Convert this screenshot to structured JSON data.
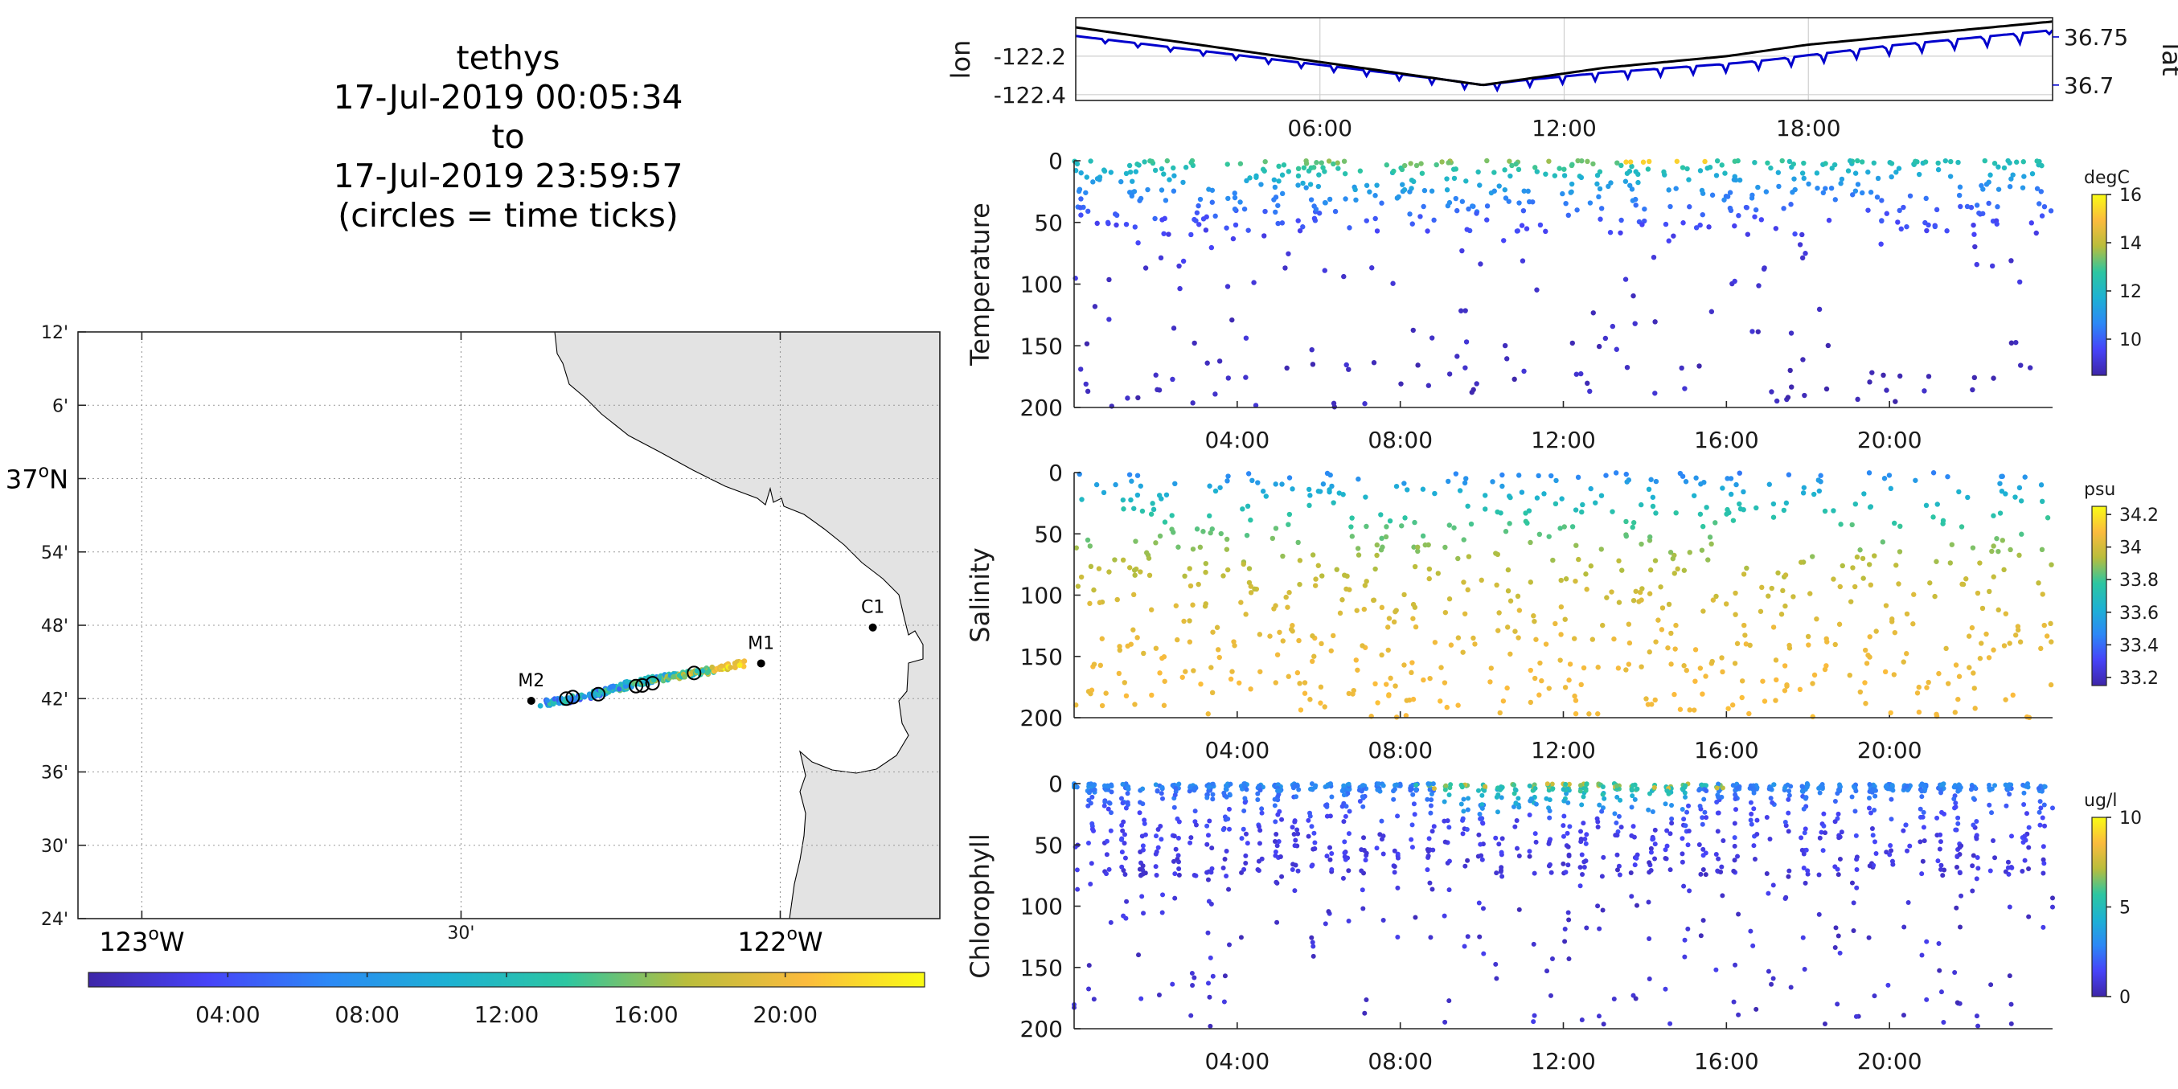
{
  "title": {
    "lines": [
      "tethys",
      "17-Jul-2019 00:05:34",
      "to",
      "17-Jul-2019 23:59:57",
      "(circles = time ticks)"
    ]
  },
  "colors": {
    "viridis_like": [
      "#3e26a8",
      "#4743f8",
      "#2c88f6",
      "#1db1d3",
      "#2dc6a1",
      "#b9bd3c",
      "#fbbb3d",
      "#f9fb15"
    ],
    "land": "#e3e3e3",
    "lon_line": "#000000",
    "lat_line": "#0000cc"
  },
  "chart_data": [
    {
      "type": "map",
      "name": "track-map",
      "lon_ticks": [
        {
          "lon": -123.0,
          "label": "123",
          "sup": "o",
          "suffix": "W"
        },
        {
          "lon": -122.5,
          "label": "30'"
        },
        {
          "lon": -122.0,
          "label": "122",
          "sup": "o",
          "suffix": "W"
        }
      ],
      "lat_ticks": [
        {
          "lat": 37.2,
          "label": "12'"
        },
        {
          "lat": 37.1,
          "label": "6'"
        },
        {
          "lat": 37.0,
          "label": "37",
          "sup": "o",
          "suffix": "N"
        },
        {
          "lat": 36.9,
          "label": "54'"
        },
        {
          "lat": 36.8,
          "label": "48'"
        },
        {
          "lat": 36.7,
          "label": "42'"
        },
        {
          "lat": 36.6,
          "label": "36'"
        },
        {
          "lat": 36.5,
          "label": "30'"
        },
        {
          "lat": 36.4,
          "label": "24'"
        }
      ],
      "xlim": [
        -123.1,
        -121.75
      ],
      "ylim": [
        36.4,
        37.2
      ],
      "stations": [
        {
          "name": "M2",
          "lon": -122.39,
          "lat": 36.697
        },
        {
          "name": "M1",
          "lon": -122.03,
          "lat": 36.748
        },
        {
          "name": "C1",
          "lon": -121.855,
          "lat": 36.797
        }
      ],
      "track_start": {
        "lon": -122.37,
        "lat": 36.694
      },
      "track_end": {
        "lon": -122.06,
        "lat": 36.749
      },
      "time_tick_circles": [
        {
          "lon": -122.335,
          "lat": 36.7
        },
        {
          "lon": -122.325,
          "lat": 36.702
        },
        {
          "lon": -122.285,
          "lat": 36.706
        },
        {
          "lon": -122.226,
          "lat": 36.717
        },
        {
          "lon": -122.216,
          "lat": 36.718
        },
        {
          "lon": -122.2,
          "lat": 36.721
        },
        {
          "lon": -122.135,
          "lat": 36.735
        }
      ],
      "colorbar_ticks": [
        "04:00",
        "08:00",
        "12:00",
        "16:00",
        "20:00"
      ]
    },
    {
      "type": "line",
      "name": "lon-lat",
      "ylabel_left": "lon",
      "ylabel_right": "lat",
      "yticks_left": [
        -122.2,
        -122.4
      ],
      "yticks_left_labels": [
        "-122.2",
        "-122.4"
      ],
      "ylim_left": [
        -122.43,
        -122.0
      ],
      "yticks_right": [
        36.75,
        36.7
      ],
      "yticks_right_labels": [
        "36.75",
        "36.7"
      ],
      "ylim_right": [
        36.684,
        36.77
      ],
      "xlim_hours": [
        0,
        24
      ],
      "xticks": [
        "06:00",
        "12:00",
        "18:00"
      ],
      "series": [
        {
          "name": "lon",
          "hours": [
            0,
            1,
            2,
            3,
            4,
            5,
            6,
            7,
            8,
            9,
            10,
            11,
            12,
            13,
            14,
            15,
            16,
            17,
            18,
            19,
            20,
            21,
            22,
            23,
            24
          ],
          "values": [
            -122.05,
            -122.08,
            -122.11,
            -122.14,
            -122.17,
            -122.2,
            -122.23,
            -122.26,
            -122.29,
            -122.32,
            -122.35,
            -122.32,
            -122.29,
            -122.26,
            -122.24,
            -122.22,
            -122.2,
            -122.17,
            -122.14,
            -122.12,
            -122.1,
            -122.08,
            -122.06,
            -122.04,
            -122.02
          ]
        },
        {
          "name": "lat",
          "hours": [
            0,
            1,
            2,
            3,
            4,
            5,
            6,
            7,
            8,
            9,
            10,
            11,
            12,
            13,
            14,
            15,
            16,
            17,
            18,
            19,
            20,
            21,
            22,
            23,
            24
          ],
          "values": [
            36.751,
            36.746,
            36.741,
            36.736,
            36.731,
            36.726,
            36.721,
            36.716,
            36.711,
            36.706,
            36.7,
            36.705,
            36.709,
            36.713,
            36.716,
            36.719,
            36.722,
            36.726,
            36.731,
            36.736,
            36.741,
            36.745,
            36.749,
            36.753,
            36.757
          ]
        }
      ]
    },
    {
      "type": "scatter",
      "name": "temperature",
      "ylabel": "Temperature",
      "yticks": [
        0,
        50,
        100,
        150,
        200
      ],
      "ylim": [
        0,
        200
      ],
      "xticks": [
        "04:00",
        "08:00",
        "12:00",
        "16:00",
        "20:00"
      ],
      "xlim_hours": [
        0,
        24
      ],
      "colorbar": {
        "unit": "degC",
        "ticks": [
          10,
          12,
          14,
          16
        ],
        "clim": [
          8.5,
          16
        ]
      },
      "profile": {
        "surface": 13,
        "deep": 8.8,
        "scale_depth": 35
      },
      "points_sampled": 640
    },
    {
      "type": "scatter",
      "name": "salinity",
      "ylabel": "Salinity",
      "yticks": [
        0,
        50,
        100,
        150,
        200
      ],
      "ylim": [
        0,
        200
      ],
      "xticks": [
        "04:00",
        "08:00",
        "12:00",
        "16:00",
        "20:00"
      ],
      "xlim_hours": [
        0,
        24
      ],
      "colorbar": {
        "unit": "psu",
        "ticks": [
          33.2,
          33.4,
          33.6,
          33.8,
          34,
          34.2
        ],
        "clim": [
          33.15,
          34.25
        ]
      },
      "profile": {
        "surface": 33.45,
        "deep": 34.1
      },
      "points_sampled": 760
    },
    {
      "type": "scatter",
      "name": "chlorophyll",
      "ylabel": "Chlorophyll",
      "yticks": [
        0,
        50,
        100,
        150,
        200
      ],
      "ylim": [
        0,
        200
      ],
      "xticks": [
        "04:00",
        "08:00",
        "12:00",
        "16:00",
        "20:00"
      ],
      "xlim_hours": [
        0,
        24
      ],
      "colorbar": {
        "unit": "ug/l",
        "ticks": [
          0,
          5,
          10
        ],
        "clim": [
          0,
          10
        ]
      },
      "profile": {
        "surface": 2.5,
        "deep": 0.2
      },
      "points_sampled": 1400
    }
  ]
}
